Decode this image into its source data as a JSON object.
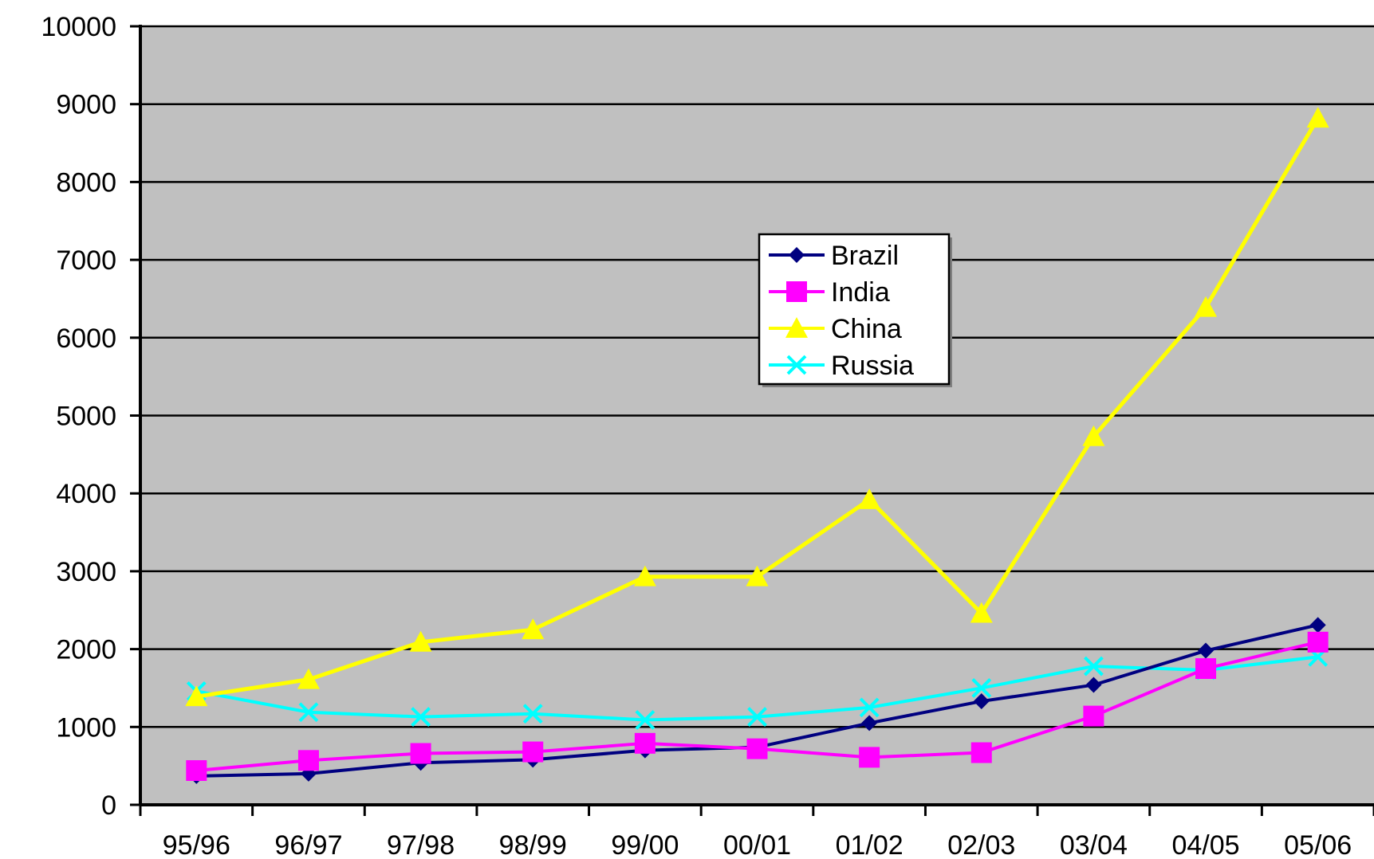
{
  "chart_data": {
    "type": "line",
    "categories": [
      "95/96",
      "96/97",
      "97/98",
      "98/99",
      "99/00",
      "00/01",
      "01/02",
      "02/03",
      "03/04",
      "04/05",
      "05/06"
    ],
    "series": [
      {
        "name": "Brazil",
        "color": "#000080",
        "marker": "diamond",
        "values": [
          370,
          400,
          540,
          580,
          700,
          740,
          1050,
          1330,
          1540,
          1980,
          2310
        ]
      },
      {
        "name": "India",
        "color": "#FF00FF",
        "marker": "square",
        "values": [
          440,
          570,
          660,
          680,
          790,
          720,
          610,
          670,
          1140,
          1750,
          2090
        ]
      },
      {
        "name": "China",
        "color": "#FFFF00",
        "marker": "triangle",
        "values": [
          1390,
          1610,
          2090,
          2250,
          2930,
          2930,
          3920,
          2460,
          4730,
          6390,
          8820
        ]
      },
      {
        "name": "Russia",
        "color": "#00FFFF",
        "marker": "x",
        "values": [
          1460,
          1190,
          1130,
          1170,
          1090,
          1130,
          1250,
          1500,
          1780,
          1730,
          1900
        ]
      }
    ],
    "ylim": [
      0,
      10000
    ],
    "yticks": [
      "0",
      "1000",
      "2000",
      "3000",
      "4000",
      "5000",
      "6000",
      "7000",
      "8000",
      "9000",
      "10000"
    ],
    "title": "",
    "xlabel": "",
    "ylabel": "",
    "grid": true,
    "legend_position": "center",
    "plot_background": "#C0C0C0"
  }
}
